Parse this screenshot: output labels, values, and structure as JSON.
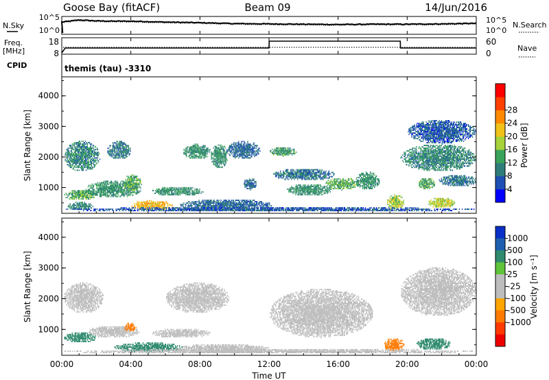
{
  "header": {
    "station": "Goose Bay (fitACF)",
    "beam": "Beam 09",
    "date": "14/Jun/2016"
  },
  "side_labels": {
    "n_sky": "N.Sky",
    "n_search": "N.Search",
    "freq_top": "Freq.",
    "freq_unit": "[MHz]",
    "cpid": "CPID",
    "nave": "Nave"
  },
  "program_label": "themis (tau) -3310",
  "time_axis": {
    "label": "Time UT",
    "ticks": [
      "00:00",
      "04:00",
      "08:00",
      "12:00",
      "16:00",
      "20:00",
      "00:00"
    ]
  },
  "colors": {
    "power_scale": [
      "#0000ff",
      "#1e4fb4",
      "#2f7d7a",
      "#3aa35b",
      "#a7d23a",
      "#f0c21a",
      "#ff8a00",
      "#ff4000",
      "#ff0000"
    ],
    "velocity_scale": [
      "#0a2fc8",
      "#1e5fb0",
      "#2f8a6e",
      "#5fc43a",
      "#bdbdbd",
      "#bdbdbd",
      "#ffa500",
      "#ff7a00",
      "#ff3a00",
      "#ee0000"
    ]
  },
  "chart_data": [
    {
      "type": "line",
      "name": "noise-panel",
      "left_labels": [
        "10^5",
        "10^0"
      ],
      "right_labels": [
        "10^5",
        "10^0"
      ],
      "x": [
        0,
        1,
        2,
        3,
        4,
        6,
        8,
        10,
        12,
        14,
        16,
        18,
        20,
        22,
        24
      ],
      "series": [
        {
          "values": [
            3.6,
            4.3,
            4.0,
            3.9,
            3.9,
            3.6,
            3.4,
            3.1,
            3.0,
            2.9,
            2.8,
            2.9,
            2.9,
            3.0,
            3.2
          ]
        }
      ],
      "xlim": [
        0,
        24
      ],
      "ylim": [
        0,
        5
      ]
    },
    {
      "type": "line",
      "name": "frequency-panel",
      "left_ticks": [
        "18",
        "8"
      ],
      "right_ticks": [
        "60",
        "0"
      ],
      "x": [
        0,
        0.2,
        12,
        12.01,
        19.6,
        19.61,
        24
      ],
      "series": [
        {
          "values": [
            8,
            11.5,
            11.5,
            16.5,
            16.5,
            11.5,
            11.5
          ]
        }
      ],
      "nave_level": 12,
      "xlim": [
        0,
        24
      ],
      "ylim": [
        8,
        18
      ]
    },
    {
      "type": "heatmap",
      "name": "power",
      "ylabel": "Slant Range [km]",
      "xlabel": "Time UT",
      "yticks": [
        "1000",
        "2000",
        "3000",
        "4000"
      ],
      "xlim": [
        0,
        24
      ],
      "ylim": [
        180,
        4600
      ],
      "colorbar_label": "Power [dB]",
      "colorbar_ticks": [
        "4",
        "8",
        "12",
        "16",
        "20",
        "24",
        "28"
      ],
      "blobs": [
        {
          "t0": 0.1,
          "t1": 2.2,
          "r0": 1500,
          "r1": 2500,
          "v": 11
        },
        {
          "t0": 0.1,
          "t1": 2.0,
          "r0": 560,
          "r1": 900,
          "v": 14
        },
        {
          "t0": 0.3,
          "t1": 1.8,
          "r0": 220,
          "r1": 500,
          "v": 10
        },
        {
          "t0": 1.3,
          "t1": 4.6,
          "r0": 640,
          "r1": 1200,
          "v": 12
        },
        {
          "t0": 2.6,
          "t1": 4.0,
          "r0": 1900,
          "r1": 2500,
          "v": 10
        },
        {
          "t0": 3.5,
          "t1": 4.6,
          "r0": 850,
          "r1": 1400,
          "v": 14
        },
        {
          "t0": 4.0,
          "t1": 6.4,
          "r0": 230,
          "r1": 550,
          "v": 23
        },
        {
          "t0": 5.2,
          "t1": 8.2,
          "r0": 700,
          "r1": 1000,
          "v": 12
        },
        {
          "t0": 7.0,
          "t1": 8.6,
          "r0": 1900,
          "r1": 2400,
          "v": 12
        },
        {
          "t0": 8.6,
          "t1": 9.6,
          "r0": 1600,
          "r1": 2400,
          "v": 12
        },
        {
          "t0": 6.8,
          "t1": 12.2,
          "r0": 200,
          "r1": 600,
          "v": 8
        },
        {
          "t0": 9.5,
          "t1": 11.5,
          "r0": 1900,
          "r1": 2500,
          "v": 8
        },
        {
          "t0": 10.5,
          "t1": 11.3,
          "r0": 900,
          "r1": 1300,
          "v": 8
        },
        {
          "t0": 12.0,
          "t1": 13.6,
          "r0": 2000,
          "r1": 2300,
          "v": 13
        },
        {
          "t0": 12.2,
          "t1": 15.8,
          "r0": 1200,
          "r1": 1600,
          "v": 9
        },
        {
          "t0": 13.0,
          "t1": 15.6,
          "r0": 700,
          "r1": 1100,
          "v": 12
        },
        {
          "t0": 15.2,
          "t1": 17.2,
          "r0": 900,
          "r1": 1300,
          "v": 15
        },
        {
          "t0": 17.0,
          "t1": 18.4,
          "r0": 900,
          "r1": 1500,
          "v": 12
        },
        {
          "t0": 18.8,
          "t1": 19.8,
          "r0": 250,
          "r1": 750,
          "v": 18
        },
        {
          "t0": 19.6,
          "t1": 24.0,
          "r0": 1500,
          "r1": 2400,
          "v": 11
        },
        {
          "t0": 20.0,
          "t1": 24.0,
          "r0": 2400,
          "r1": 3200,
          "v": 7
        },
        {
          "t0": 20.6,
          "t1": 21.6,
          "r0": 900,
          "r1": 1300,
          "v": 14
        },
        {
          "t0": 21.2,
          "t1": 22.8,
          "r0": 300,
          "r1": 650,
          "v": 19
        },
        {
          "t0": 21.8,
          "t1": 24.0,
          "r0": 1000,
          "r1": 1400,
          "v": 9
        },
        {
          "t0": 0.0,
          "t1": 24.0,
          "r0": 180,
          "r1": 340,
          "v": 7
        }
      ]
    },
    {
      "type": "heatmap",
      "name": "velocity",
      "ylabel": "Slant Range [km]",
      "xlabel": "Time UT",
      "yticks": [
        "1000",
        "2000",
        "3000",
        "4000"
      ],
      "xlim": [
        0,
        24
      ],
      "ylim": [
        180,
        4600
      ],
      "colorbar_label": "Velocity [m s⁻¹]",
      "colorbar_ticks": [
        "1000",
        "500",
        "100",
        "25",
        "-25",
        "-100",
        "-500",
        "-1000"
      ],
      "blobs": [
        {
          "t0": 0.1,
          "t1": 2.4,
          "r0": 1500,
          "r1": 2500,
          "v": 0
        },
        {
          "t0": 0.1,
          "t1": 2.0,
          "r0": 540,
          "r1": 900,
          "v": 120
        },
        {
          "t0": 1.5,
          "t1": 4.5,
          "r0": 700,
          "r1": 1100,
          "v": 0
        },
        {
          "t0": 3.6,
          "t1": 4.3,
          "r0": 900,
          "r1": 1200,
          "v": -150
        },
        {
          "t0": 3.0,
          "t1": 7.0,
          "r0": 220,
          "r1": 550,
          "v": 120
        },
        {
          "t0": 5.2,
          "t1": 8.6,
          "r0": 700,
          "r1": 1000,
          "v": 0
        },
        {
          "t0": 6.0,
          "t1": 9.7,
          "r0": 1500,
          "r1": 2500,
          "v": 0
        },
        {
          "t0": 6.5,
          "t1": 12.0,
          "r0": 200,
          "r1": 500,
          "v": 0
        },
        {
          "t0": 12.0,
          "t1": 18.0,
          "r0": 700,
          "r1": 2300,
          "v": 0
        },
        {
          "t0": 18.6,
          "t1": 19.8,
          "r0": 250,
          "r1": 700,
          "v": -200
        },
        {
          "t0": 19.6,
          "t1": 24.0,
          "r0": 1400,
          "r1": 3000,
          "v": 0
        },
        {
          "t0": 20.5,
          "t1": 22.5,
          "r0": 300,
          "r1": 700,
          "v": 120
        },
        {
          "t0": 0.0,
          "t1": 24.0,
          "r0": 180,
          "r1": 340,
          "v": 0
        }
      ]
    }
  ]
}
